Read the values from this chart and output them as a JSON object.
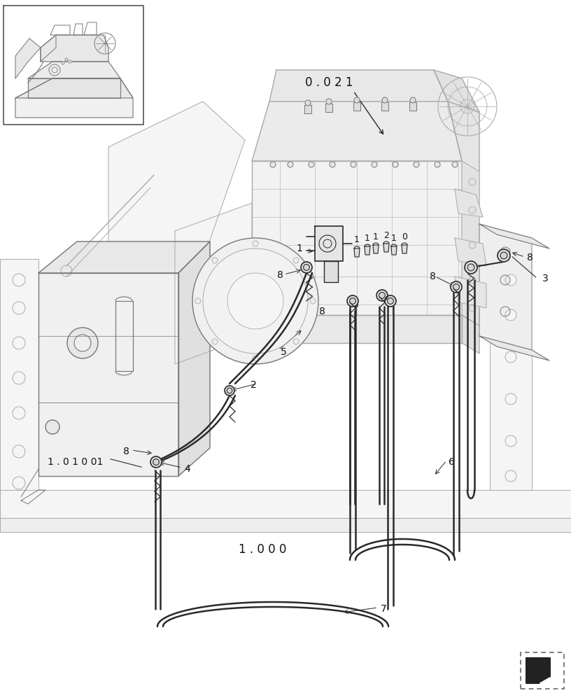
{
  "bg_color": "#ffffff",
  "line_color": "#2a2a2a",
  "light_line_color": "#aaaaaa",
  "mid_line_color": "#777777",
  "label_color": "#111111",
  "figsize": [
    8.16,
    10.0
  ],
  "dpi": 100,
  "labels": {
    "ref_top": "0 . 0 2 1",
    "ref_bottom_left": "1 . 0 1 0 01",
    "ref_bottom_mid": "1 . 0 0 0",
    "part1": "1",
    "part2": "2",
    "part3": "3",
    "part4": "4",
    "part5": "5",
    "part6": "6",
    "part7": "7",
    "part8": "8"
  },
  "hose_pairs": [
    {
      "x": [
        330,
        330
      ],
      "y": [
        438,
        870
      ]
    },
    {
      "x": [
        336,
        336
      ],
      "y": [
        438,
        870
      ]
    }
  ]
}
